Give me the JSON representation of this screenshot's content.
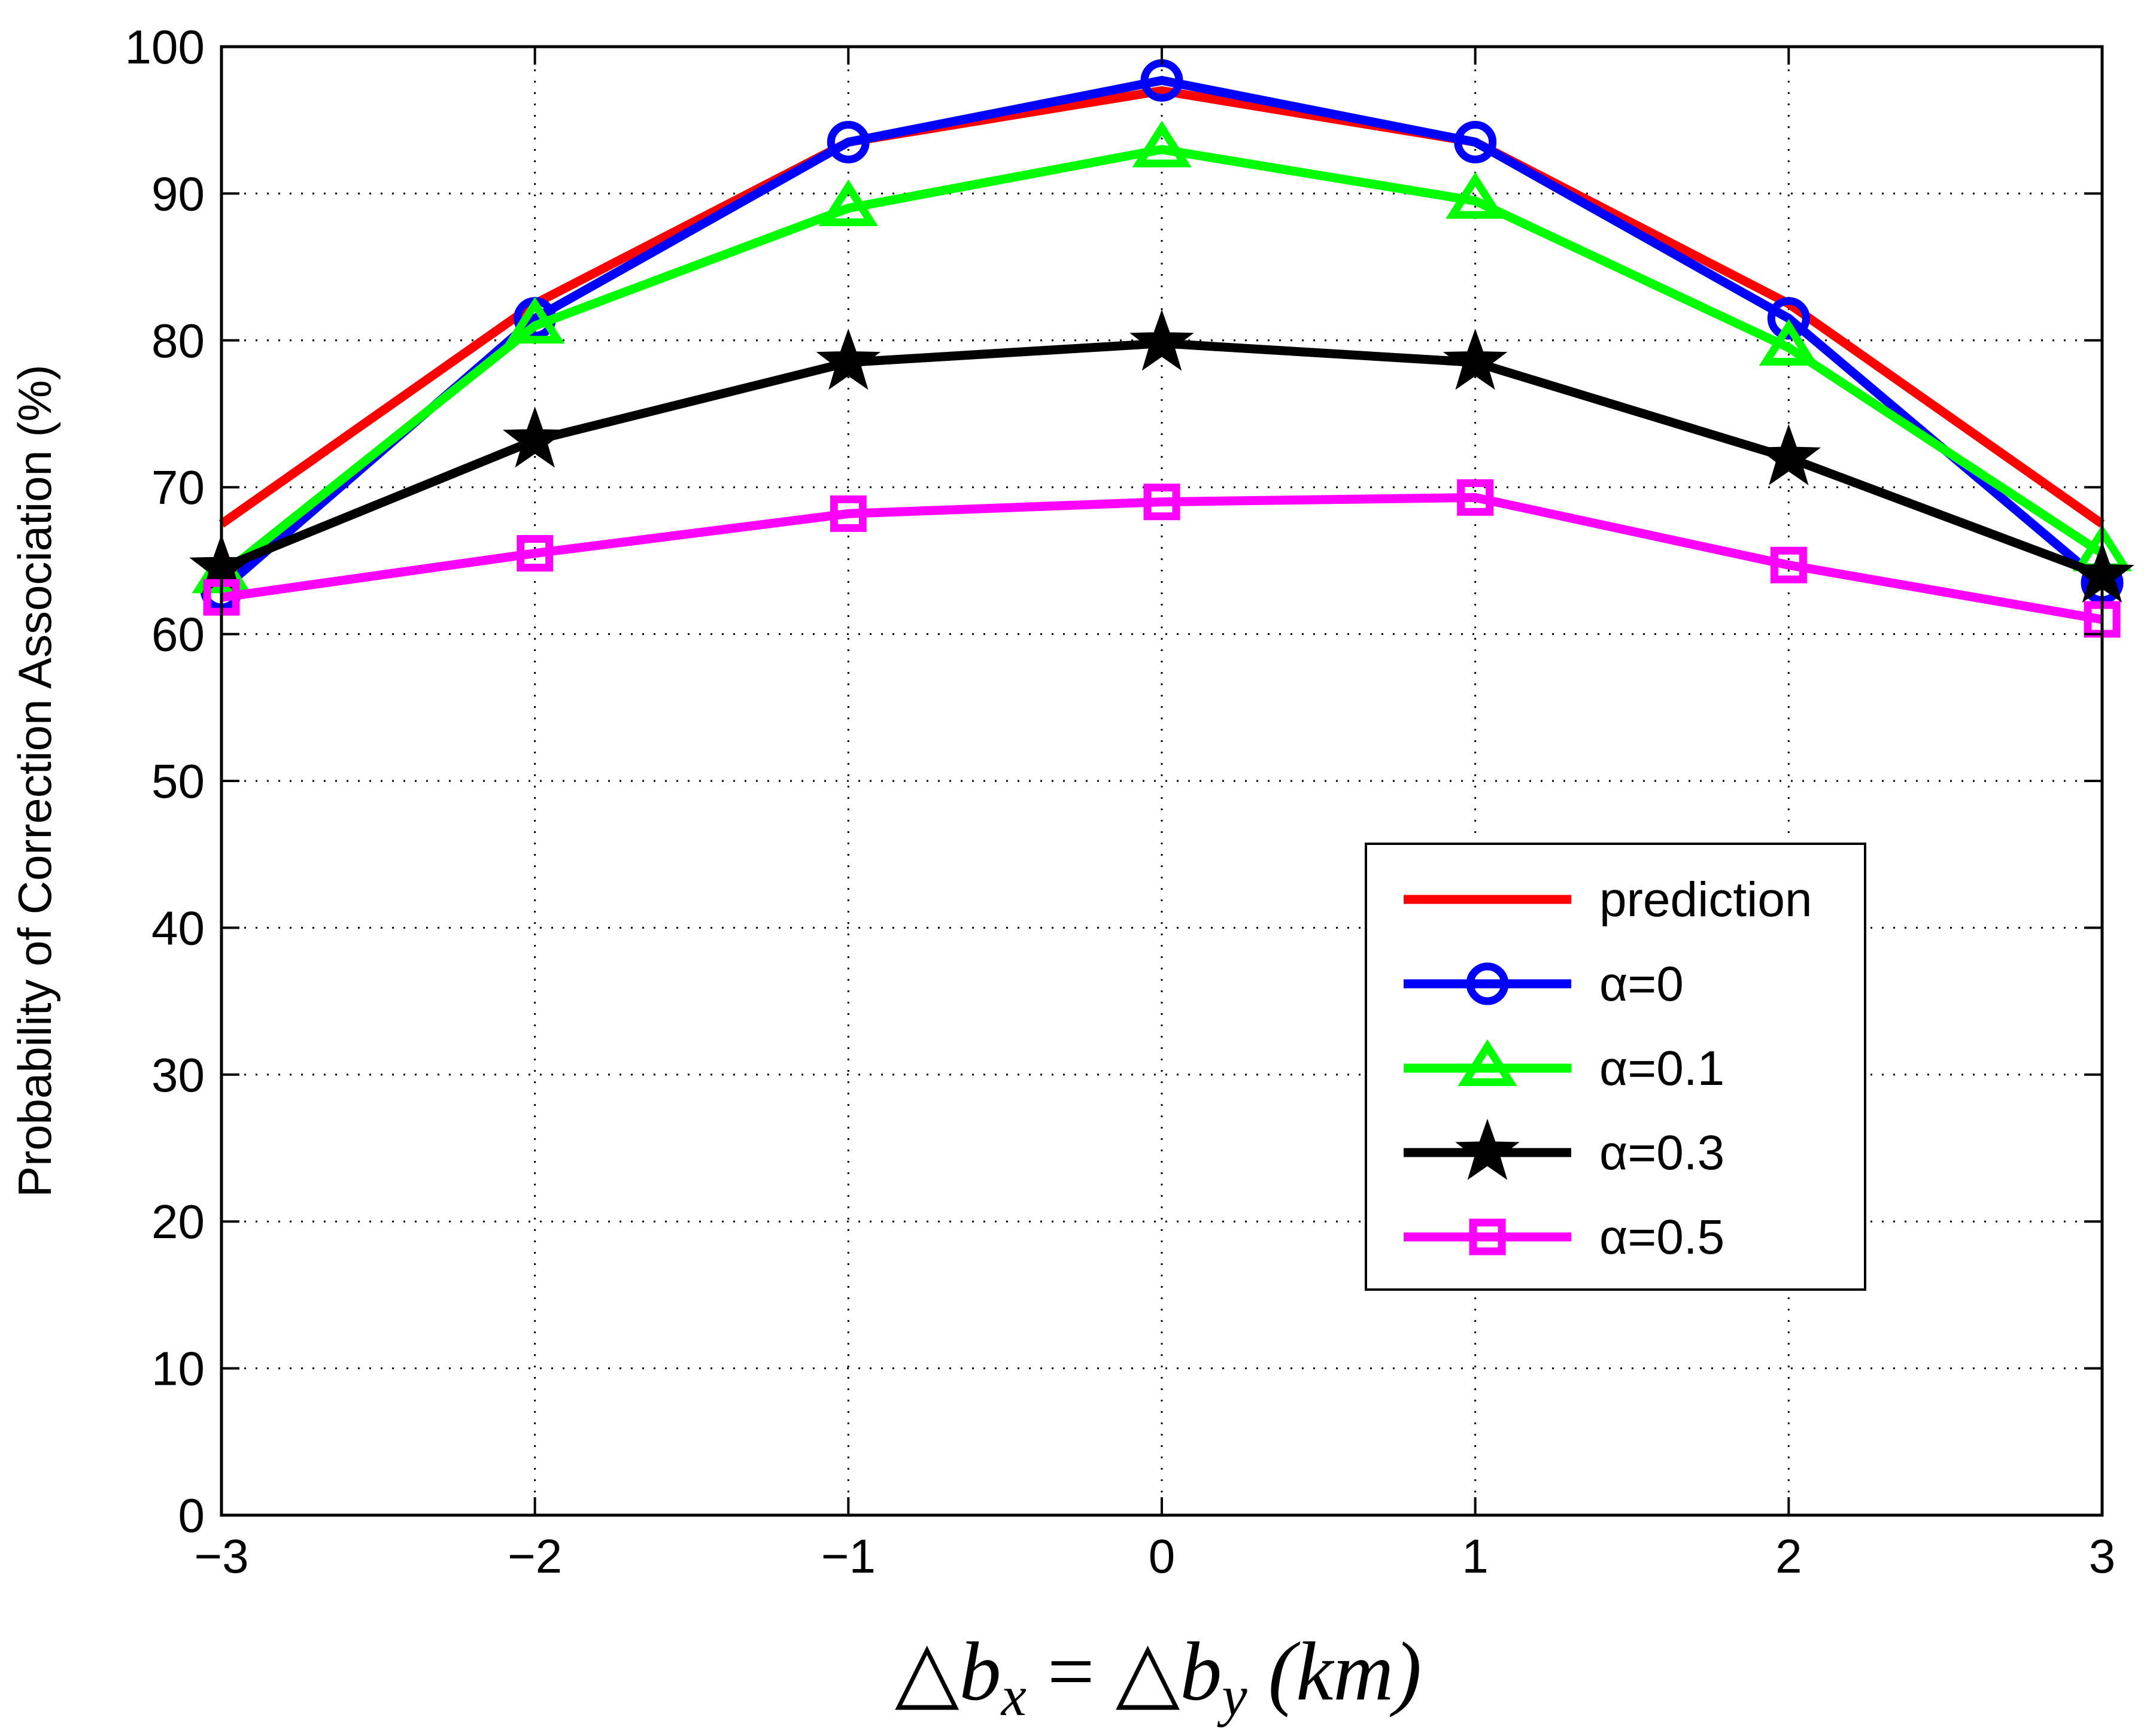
{
  "chart_data": {
    "type": "line",
    "title": "",
    "xlabel": "△b_x = △b_y (km)",
    "xlabel_parts": {
      "tri1": "△",
      "b1": "b",
      "sub1": "x",
      "eq": " = ",
      "tri2": "△",
      "b2": "b",
      "sub2": "y",
      "unit": " (km)"
    },
    "ylabel": "Probability of Correction Association (%)",
    "xlim": [
      -3,
      3
    ],
    "ylim": [
      0,
      100
    ],
    "grid": true,
    "xticks": [
      -3,
      -2,
      -1,
      0,
      1,
      2,
      3
    ],
    "xtick_labels": [
      "−3",
      "−2",
      "−1",
      "0",
      "1",
      "2",
      "3"
    ],
    "yticks": [
      0,
      10,
      20,
      30,
      40,
      50,
      60,
      70,
      80,
      90,
      100
    ],
    "ytick_labels": [
      "0",
      "10",
      "20",
      "30",
      "40",
      "50",
      "60",
      "70",
      "80",
      "90",
      "100"
    ],
    "x": [
      -3,
      -2,
      -1,
      0,
      1,
      2,
      3
    ],
    "legend_position": "lower-right",
    "series": [
      {
        "name": "prediction",
        "color": "#ff0000",
        "marker": "none",
        "values": [
          67.5,
          82.5,
          93.5,
          97.0,
          93.5,
          82.5,
          67.5
        ]
      },
      {
        "name": "α=0",
        "color": "#0000ff",
        "marker": "circle",
        "values": [
          63.0,
          81.5,
          93.5,
          97.7,
          93.5,
          81.5,
          63.5
        ]
      },
      {
        "name": "α=0.1",
        "color": "#00ff00",
        "marker": "triangle",
        "values": [
          64.0,
          81.0,
          89.0,
          93.0,
          89.5,
          79.5,
          65.5
        ]
      },
      {
        "name": "α=0.3",
        "color": "#000000",
        "marker": "star",
        "values": [
          64.5,
          73.2,
          78.5,
          79.8,
          78.5,
          72.0,
          64.0
        ]
      },
      {
        "name": "α=0.5",
        "color": "#ff00ff",
        "marker": "square",
        "values": [
          62.5,
          65.5,
          68.2,
          69.0,
          69.3,
          64.7,
          61.0
        ]
      }
    ]
  }
}
